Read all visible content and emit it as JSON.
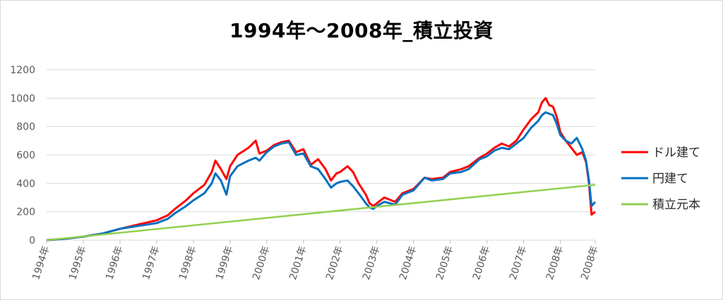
{
  "chart_data": {
    "type": "line",
    "title": "1994年～2008年_積立投資",
    "xlabel": "",
    "ylabel": "",
    "ylim": [
      0,
      1200
    ],
    "yticks": [
      0,
      200,
      400,
      600,
      800,
      1000,
      1200
    ],
    "xlim": [
      1994.0,
      2008.95
    ],
    "xticks": [
      1994,
      1995,
      1996,
      1997,
      1998,
      1999,
      2000,
      2001,
      2002,
      2003,
      2004,
      2005,
      2006,
      2007,
      2008,
      2008.95
    ],
    "xtick_labels": [
      "1994年",
      "1995年",
      "1996年",
      "1997年",
      "1998年",
      "1999年",
      "2000年",
      "2001年",
      "2002年",
      "2003年",
      "2004年",
      "2005年",
      "2006年",
      "2007年",
      "2008年",
      "2008年"
    ],
    "grid": "horizontal",
    "legend_position": "right",
    "series": [
      {
        "name": "ドル建て",
        "color": "#ff0000",
        "x": [
          1994.0,
          1994.5,
          1995.0,
          1995.5,
          1996.0,
          1996.5,
          1997.0,
          1997.3,
          1997.5,
          1997.8,
          1998.0,
          1998.3,
          1998.5,
          1998.6,
          1998.75,
          1998.9,
          1999.0,
          1999.2,
          1999.5,
          1999.7,
          1999.8,
          2000.0,
          2000.2,
          2000.4,
          2000.6,
          2000.8,
          2001.0,
          2001.2,
          2001.4,
          2001.6,
          2001.75,
          2001.9,
          2002.0,
          2002.2,
          2002.35,
          2002.5,
          2002.7,
          2002.8,
          2002.9,
          2003.0,
          2003.2,
          2003.5,
          2003.7,
          2004.0,
          2004.3,
          2004.5,
          2004.8,
          2005.0,
          2005.3,
          2005.5,
          2005.8,
          2006.0,
          2006.2,
          2006.4,
          2006.6,
          2006.8,
          2007.0,
          2007.2,
          2007.4,
          2007.5,
          2007.6,
          2007.7,
          2007.8,
          2007.9,
          2008.0,
          2008.15,
          2008.3,
          2008.45,
          2008.6,
          2008.7,
          2008.78,
          2008.85,
          2008.95
        ],
        "values": [
          0,
          10,
          25,
          45,
          80,
          110,
          140,
          175,
          220,
          280,
          330,
          390,
          480,
          560,
          500,
          430,
          520,
          600,
          650,
          700,
          610,
          630,
          670,
          690,
          700,
          620,
          640,
          530,
          570,
          500,
          420,
          470,
          480,
          520,
          480,
          400,
          320,
          260,
          240,
          260,
          300,
          270,
          330,
          360,
          440,
          430,
          440,
          480,
          500,
          520,
          580,
          610,
          650,
          680,
          660,
          700,
          780,
          850,
          900,
          970,
          1000,
          950,
          940,
          870,
          760,
          700,
          650,
          600,
          620,
          550,
          400,
          180,
          200
        ]
      },
      {
        "name": "円建て",
        "color": "#0070c0",
        "x": [
          1994.0,
          1994.5,
          1995.0,
          1995.5,
          1996.0,
          1996.5,
          1997.0,
          1997.3,
          1997.5,
          1997.8,
          1998.0,
          1998.3,
          1998.5,
          1998.6,
          1998.75,
          1998.9,
          1999.0,
          1999.2,
          1999.5,
          1999.7,
          1999.8,
          2000.0,
          2000.2,
          2000.4,
          2000.6,
          2000.8,
          2001.0,
          2001.2,
          2001.4,
          2001.6,
          2001.75,
          2001.9,
          2002.0,
          2002.2,
          2002.35,
          2002.5,
          2002.7,
          2002.8,
          2002.9,
          2003.0,
          2003.2,
          2003.5,
          2003.7,
          2004.0,
          2004.3,
          2004.5,
          2004.8,
          2005.0,
          2005.3,
          2005.5,
          2005.8,
          2006.0,
          2006.2,
          2006.4,
          2006.6,
          2006.8,
          2007.0,
          2007.2,
          2007.4,
          2007.5,
          2007.6,
          2007.7,
          2007.8,
          2007.9,
          2008.0,
          2008.15,
          2008.3,
          2008.45,
          2008.6,
          2008.7,
          2008.78,
          2008.85,
          2008.95
        ],
        "values": [
          0,
          10,
          25,
          45,
          80,
          100,
          120,
          150,
          190,
          240,
          280,
          330,
          400,
          470,
          420,
          320,
          450,
          520,
          560,
          580,
          560,
          620,
          660,
          680,
          690,
          600,
          610,
          520,
          500,
          430,
          370,
          400,
          410,
          420,
          380,
          330,
          260,
          230,
          220,
          240,
          270,
          250,
          320,
          350,
          440,
          420,
          430,
          470,
          480,
          500,
          570,
          590,
          630,
          650,
          640,
          680,
          720,
          790,
          840,
          880,
          900,
          890,
          880,
          820,
          740,
          700,
          680,
          720,
          640,
          560,
          420,
          240,
          270
        ]
      },
      {
        "name": "積立元本",
        "color": "#92d050",
        "x": [
          1994.0,
          2008.95
        ],
        "values": [
          0,
          390
        ]
      }
    ]
  }
}
